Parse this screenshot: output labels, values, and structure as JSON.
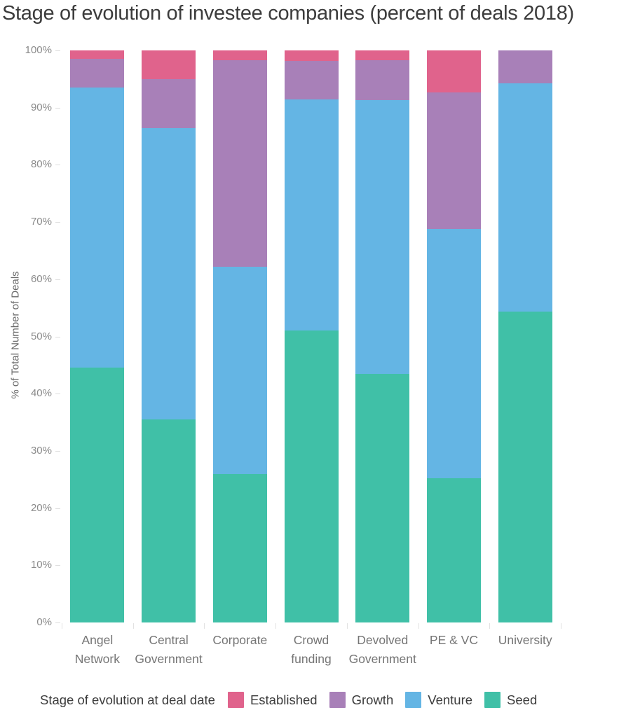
{
  "page": {
    "background": "#ffffff"
  },
  "chart_data": {
    "type": "bar",
    "stacked": true,
    "units": "percent",
    "title": "Stage of evolution of investee companies (percent of deals 2018)",
    "xlabel": "",
    "ylabel": "% of Total Number of Deals",
    "ylim": [
      0,
      100
    ],
    "ytick_step": 10,
    "ytick_suffix": "%",
    "grid": false,
    "legend_position": "bottom",
    "categories": [
      "Angel Network",
      "Central Government",
      "Corporate",
      "Crowd funding",
      "Devolved Government",
      "PE & VC",
      "University"
    ],
    "category_label_lines": [
      [
        "Angel",
        "Network"
      ],
      [
        "Central",
        "Government"
      ],
      [
        "Corporate"
      ],
      [
        "Crowd",
        "funding"
      ],
      [
        "Devolved",
        "Government"
      ],
      [
        "PE & VC"
      ],
      [
        "University"
      ]
    ],
    "series": [
      {
        "name": "Seed",
        "color": "#40C0A7",
        "values": [
          44.5,
          35.5,
          26.0,
          51.0,
          43.5,
          25.2,
          54.3
        ]
      },
      {
        "name": "Venture",
        "color": "#64B5E4",
        "values": [
          49.0,
          50.9,
          36.2,
          40.4,
          47.8,
          43.6,
          39.9
        ]
      },
      {
        "name": "Growth",
        "color": "#A880B8",
        "values": [
          5.0,
          8.6,
          36.1,
          6.8,
          7.0,
          23.9,
          5.8
        ]
      },
      {
        "name": "Established",
        "color": "#E0638C",
        "values": [
          1.5,
          5.0,
          1.7,
          1.8,
          1.7,
          7.3,
          0.0
        ]
      }
    ],
    "legend": {
      "title": "Stage of evolution at deal date",
      "items": [
        {
          "label": "Established",
          "color": "#E0638C"
        },
        {
          "label": "Growth",
          "color": "#A880B8"
        },
        {
          "label": "Venture",
          "color": "#64B5E4"
        },
        {
          "label": "Seed",
          "color": "#40C0A7"
        }
      ]
    }
  }
}
